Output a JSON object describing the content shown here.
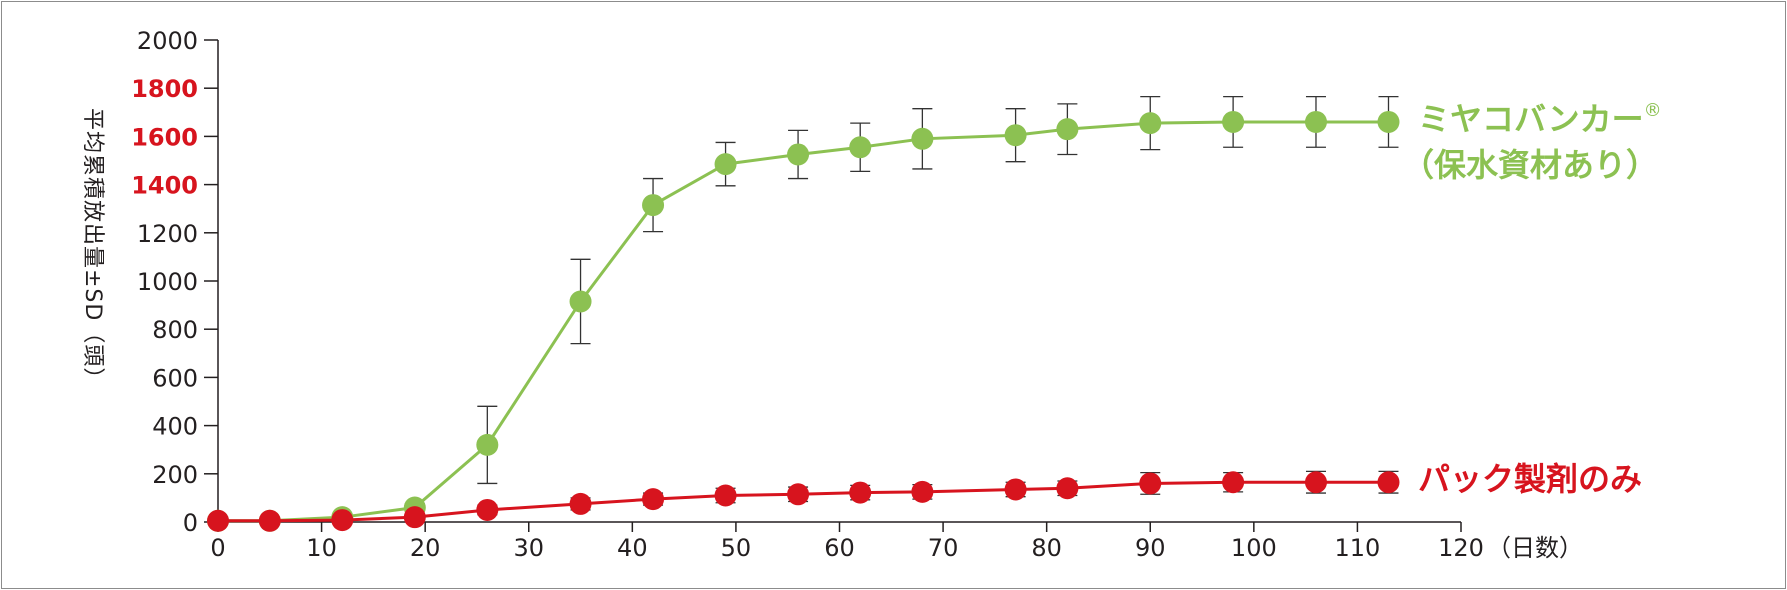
{
  "chart_data": {
    "type": "line",
    "ylabel": "平均累積放出量±SD（頭）",
    "xlabel": "（日数）",
    "xlim": [
      0,
      120
    ],
    "ylim": [
      0,
      2000
    ],
    "x_ticks": [
      0,
      10,
      20,
      30,
      40,
      50,
      60,
      70,
      80,
      90,
      100,
      110,
      120
    ],
    "y_ticks": [
      0,
      200,
      400,
      600,
      800,
      1000,
      1200,
      1400,
      1600,
      1800,
      2000
    ],
    "y_ticks_highlighted": [
      1400,
      1600,
      1800
    ],
    "grid": false,
    "error_bars": true,
    "series": [
      {
        "name": "ミヤコバンカー®（保水資材あり）",
        "label_lines": [
          "ミヤコバンカー",
          "（保水資材あり）"
        ],
        "trademark": "®",
        "color": "#8cc152",
        "x": [
          0,
          5,
          12,
          19,
          26,
          35,
          42,
          49,
          56,
          62,
          68,
          77,
          82,
          90,
          98,
          106,
          113
        ],
        "y": [
          5,
          5,
          20,
          60,
          320,
          915,
          1315,
          1485,
          1525,
          1555,
          1590,
          1605,
          1630,
          1655,
          1660,
          1660,
          1660
        ],
        "err": [
          0,
          0,
          10,
          15,
          160,
          175,
          110,
          90,
          100,
          100,
          125,
          110,
          105,
          110,
          105,
          105,
          105
        ]
      },
      {
        "name": "パック製剤のみ",
        "label_lines": [
          "パック製剤のみ"
        ],
        "color": "#d7141e",
        "x": [
          0,
          5,
          12,
          19,
          26,
          35,
          42,
          49,
          56,
          62,
          68,
          77,
          82,
          90,
          98,
          106,
          113
        ],
        "y": [
          5,
          5,
          8,
          20,
          50,
          75,
          95,
          110,
          115,
          122,
          125,
          135,
          140,
          160,
          165,
          165,
          165
        ],
        "err": [
          0,
          0,
          5,
          8,
          20,
          25,
          25,
          30,
          30,
          30,
          30,
          30,
          30,
          45,
          40,
          45,
          45
        ]
      }
    ]
  }
}
